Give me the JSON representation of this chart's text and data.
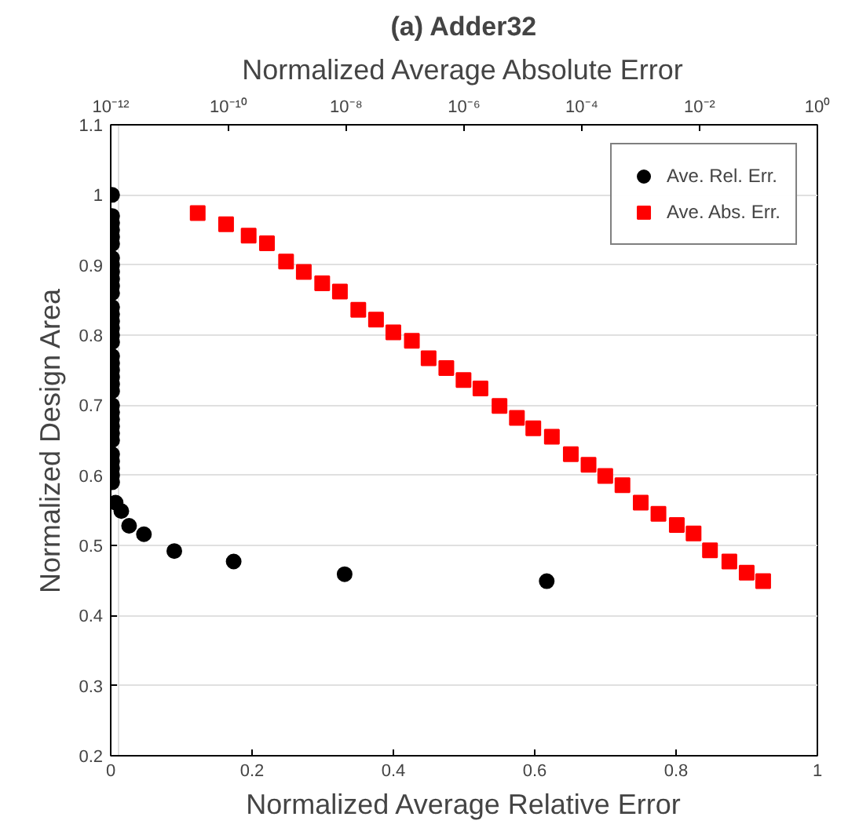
{
  "chart_data": {
    "type": "scatter",
    "title": "(a) Adder32",
    "xlabel": "Normalized Average Relative Error",
    "x2label": "Normalized Average Absolute Error",
    "ylabel": "Normalized Design Area",
    "xlim": [
      0,
      1
    ],
    "xticks": [
      0,
      0.2,
      0.4,
      0.6,
      0.8,
      1
    ],
    "x2lim": [
      1e-12,
      1
    ],
    "x2ticks": [
      {
        "value": 1e-12,
        "label": "10⁻¹²"
      },
      {
        "value": 1e-10,
        "label": "10⁻¹⁰"
      },
      {
        "value": 1e-08,
        "label": "10⁻⁸"
      },
      {
        "value": 1e-06,
        "label": "10⁻⁶"
      },
      {
        "value": 0.0001,
        "label": "10⁻⁴"
      },
      {
        "value": 0.01,
        "label": "10⁻²"
      },
      {
        "value": 1,
        "label": "10⁰"
      }
    ],
    "ylim": [
      0.2,
      1.1
    ],
    "yticks": [
      0.2,
      0.3,
      0.4,
      0.5,
      0.6,
      0.7,
      0.8,
      0.9,
      1,
      1.1
    ],
    "log": "x2",
    "grid": true,
    "legend": "top right",
    "series": [
      {
        "name": "Ave. Rel. Err.",
        "color": "#000000",
        "marker": "circle",
        "x": [
          0.002,
          0.002,
          0.002,
          0.002,
          0.002,
          0.002,
          0.002,
          0.002,
          0.002,
          0.002,
          0.002,
          0.002,
          0.002,
          0.002,
          0.002,
          0.002,
          0.002,
          0.002,
          0.002,
          0.002,
          0.002,
          0.002,
          0.002,
          0.002,
          0.002,
          0.002,
          0.002,
          0.002,
          0.002,
          0.002,
          0.002,
          0.002,
          0.002,
          0.002,
          0.002,
          0.007,
          0.015,
          0.026,
          0.047,
          0.09,
          0.174,
          0.331,
          0.617
        ],
        "values": [
          1.0,
          0.97,
          0.96,
          0.95,
          0.94,
          0.93,
          0.91,
          0.9,
          0.89,
          0.88,
          0.87,
          0.86,
          0.84,
          0.83,
          0.82,
          0.81,
          0.8,
          0.79,
          0.77,
          0.76,
          0.75,
          0.74,
          0.73,
          0.72,
          0.7,
          0.69,
          0.68,
          0.67,
          0.66,
          0.65,
          0.63,
          0.62,
          0.61,
          0.6,
          0.59,
          0.561,
          0.549,
          0.528,
          0.516,
          0.492,
          0.477,
          0.459,
          0.449
        ]
      },
      {
        "name": "Ave. Abs. Err.",
        "color": "#ff0000",
        "marker": "square",
        "axis": "x2",
        "x": [
          3e-11,
          9.1e-11,
          2.2e-10,
          4.5e-10,
          9.5e-10,
          1.9e-09,
          3.9e-09,
          7.8e-09,
          1.6e-08,
          3.2e-08,
          6.3e-08,
          1.3e-07,
          2.5e-07,
          5e-07,
          9.8e-07,
          1.9e-06,
          4e-06,
          7.9e-06,
          1.5e-05,
          3.1e-05,
          6.5e-05,
          0.00013,
          0.00025,
          0.00049,
          0.001,
          0.002,
          0.0041,
          0.0079,
          0.015,
          0.032,
          0.063,
          0.12
        ],
        "values": [
          0.974,
          0.958,
          0.942,
          0.931,
          0.905,
          0.89,
          0.874,
          0.862,
          0.836,
          0.822,
          0.804,
          0.792,
          0.767,
          0.753,
          0.736,
          0.724,
          0.699,
          0.682,
          0.667,
          0.655,
          0.63,
          0.615,
          0.599,
          0.586,
          0.561,
          0.545,
          0.529,
          0.517,
          0.493,
          0.477,
          0.461,
          0.449
        ]
      }
    ]
  }
}
